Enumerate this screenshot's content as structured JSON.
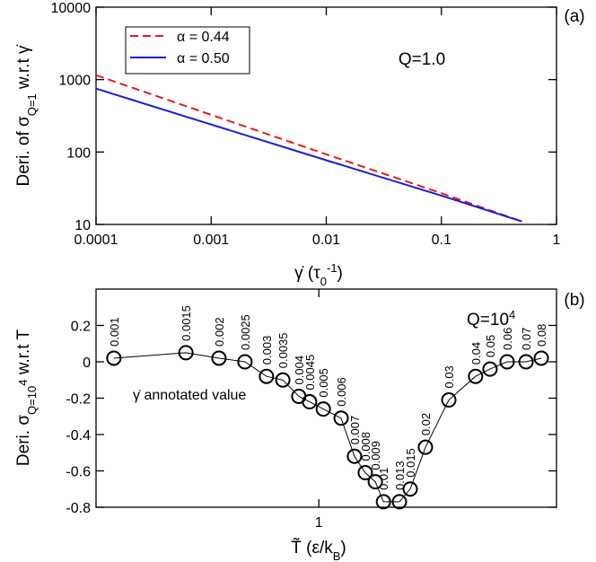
{
  "chart_data": [
    {
      "type": "line",
      "panel_label": "(a)",
      "annotation": "Q=1.0",
      "ylabel": "Deri. of σ",
      "ylabel_sub": "Q=1",
      "ylabel_end": " w.r.t γ̇",
      "xlabel": "γ̇ (τ",
      "xlabel_sub": "0",
      "xlabel_sup": "-1",
      "xlabel_end": ")",
      "log_x": true,
      "log_y": true,
      "legend": "upper left",
      "x": [
        0.0001,
        0.001,
        0.01,
        0.1,
        0.5
      ],
      "series": [
        {
          "name": "α = 0.44",
          "color": "#e8191b",
          "dashed": true,
          "values": [
            1150,
            326,
            93,
            27,
            11
          ]
        },
        {
          "name": "α = 0.50",
          "color": "#1a1adc",
          "dashed": false,
          "values": [
            750,
            240,
            77,
            25,
            11
          ]
        }
      ],
      "xlim": [
        0.0001,
        1
      ],
      "xticks": [
        0.0001,
        0.001,
        0.01,
        0.1,
        1
      ],
      "ylim": [
        10,
        10000
      ],
      "yticks": [
        10,
        100,
        1000,
        10000
      ]
    },
    {
      "type": "line-scatter",
      "panel_label": "(b)",
      "annotation": "Q=10",
      "annotation_sup": "4",
      "note": "γ̇ annotated value",
      "ylabel": "Deri. σ",
      "ylabel_sub": "Q=10",
      "ylabel_sup": "4",
      "ylabel_end": " w.r.t T",
      "xlabel": "T̃ (ε/k",
      "xlabel_sub": "B",
      "xlabel_end": ")",
      "color": "#000000",
      "x": [
        0.448,
        0.642,
        0.731,
        0.801,
        0.859,
        0.903,
        0.946,
        0.975,
        1.012,
        1.06,
        1.096,
        1.125,
        1.152,
        1.174,
        1.217,
        1.246,
        1.287,
        1.35,
        1.422,
        1.461,
        1.507,
        1.558,
        1.599
      ],
      "values": [
        0.02,
        0.05,
        0.02,
        0.0,
        -0.08,
        -0.1,
        -0.19,
        -0.22,
        -0.26,
        -0.31,
        -0.52,
        -0.61,
        -0.66,
        -0.77,
        -0.77,
        -0.7,
        -0.47,
        -0.21,
        -0.08,
        -0.04,
        0.0,
        0.0,
        0.02
      ],
      "point_labels": [
        "0.001",
        "0.0015",
        "0.002",
        "0.0025",
        "0.003",
        "0.0035",
        "0.004",
        "0.0045",
        "0.005",
        "0.006",
        "0.007",
        "0.008",
        "0.009",
        "0.01",
        "0.013",
        "0.015",
        "0.02",
        "0.03",
        "0.04",
        "0.05",
        "0.06",
        "0.07",
        "0.08"
      ],
      "xlim": [
        0.4,
        1.64
      ],
      "xticks": [
        1
      ],
      "ylim": [
        -0.8,
        0.4
      ],
      "yticks": [
        -0.8,
        -0.6,
        -0.4,
        -0.2,
        0,
        0.2
      ]
    }
  ]
}
